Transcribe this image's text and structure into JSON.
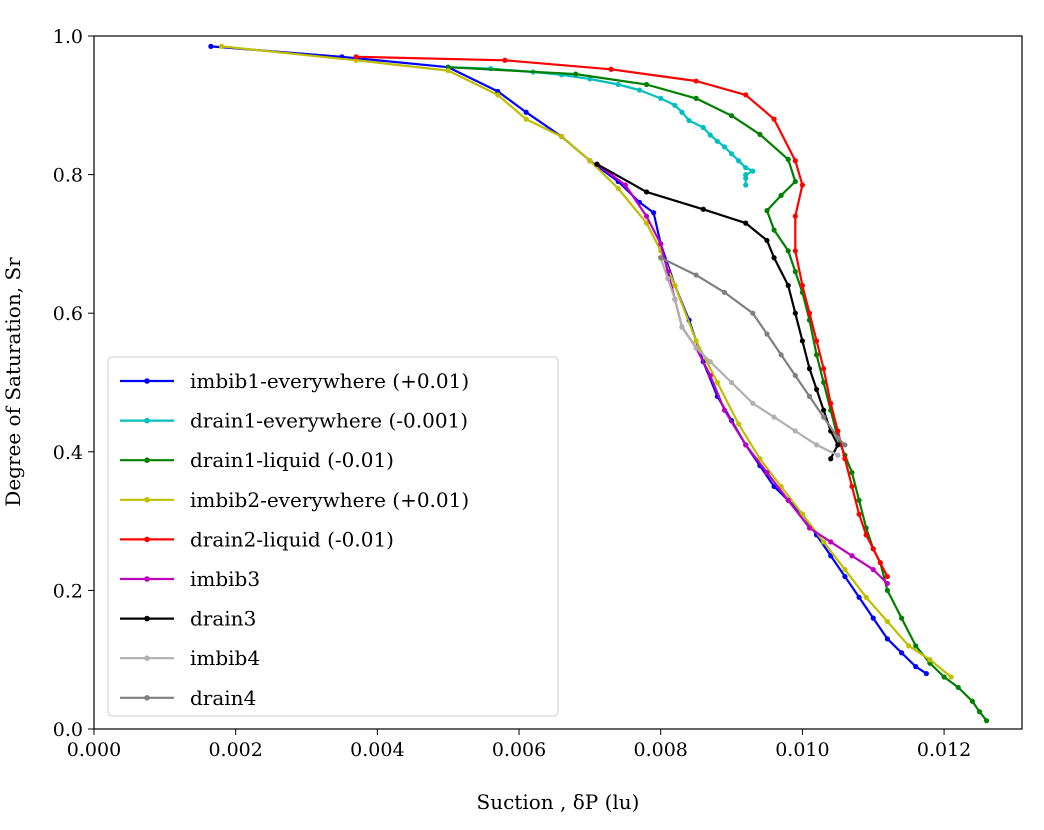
{
  "chart_data": {
    "type": "line",
    "title": "",
    "xlabel": "Suction , δP (lu)",
    "ylabel": "Degree of Saturation, Sr",
    "xlim": [
      0.0,
      0.0131
    ],
    "ylim": [
      0.0,
      1.0
    ],
    "xticks": [
      "0.000",
      "0.002",
      "0.004",
      "0.006",
      "0.008",
      "0.010",
      "0.012"
    ],
    "xtick_values": [
      0.0,
      0.002,
      0.004,
      0.006,
      0.008,
      0.01,
      0.012
    ],
    "yticks": [
      "0.0",
      "0.2",
      "0.4",
      "0.6",
      "0.8",
      "1.0"
    ],
    "ytick_values": [
      0.0,
      0.2,
      0.4,
      0.6,
      0.8,
      1.0
    ],
    "grid": false,
    "legend_position": "lower-left",
    "series": [
      {
        "name": "imbib1-everywhere (+0.01)",
        "color": "#0000ff",
        "x": [
          0.00165,
          0.0035,
          0.005,
          0.0057,
          0.0061,
          0.0066,
          0.007,
          0.0074,
          0.0077,
          0.0079,
          0.008,
          0.0082,
          0.0084,
          0.0086,
          0.0088,
          0.009,
          0.0092,
          0.0094,
          0.0096,
          0.0098,
          0.01,
          0.0102,
          0.0104,
          0.0106,
          0.0108,
          0.011,
          0.0112,
          0.0114,
          0.0116,
          0.01175
        ],
        "y": [
          0.985,
          0.97,
          0.955,
          0.92,
          0.89,
          0.855,
          0.82,
          0.79,
          0.76,
          0.745,
          0.7,
          0.64,
          0.59,
          0.53,
          0.48,
          0.445,
          0.41,
          0.38,
          0.35,
          0.33,
          0.31,
          0.28,
          0.25,
          0.22,
          0.19,
          0.16,
          0.13,
          0.11,
          0.09,
          0.08
        ]
      },
      {
        "name": "drain1-everywhere (-0.001)",
        "color": "#00bfbf",
        "x": [
          0.005,
          0.0056,
          0.0062,
          0.0066,
          0.007,
          0.0074,
          0.0077,
          0.008,
          0.0082,
          0.0083,
          0.0084,
          0.0086,
          0.0087,
          0.0088,
          0.0089,
          0.009,
          0.0091,
          0.0092,
          0.0093,
          0.0092,
          0.0092,
          0.0092
        ],
        "y": [
          0.955,
          0.953,
          0.948,
          0.944,
          0.938,
          0.93,
          0.922,
          0.91,
          0.9,
          0.89,
          0.878,
          0.868,
          0.857,
          0.848,
          0.84,
          0.83,
          0.82,
          0.81,
          0.805,
          0.8,
          0.795,
          0.785
        ]
      },
      {
        "name": "drain1-liquid (-0.01)",
        "color": "#008000",
        "x": [
          0.005,
          0.0068,
          0.0078,
          0.0085,
          0.009,
          0.0094,
          0.0098,
          0.0099,
          0.0097,
          0.0095,
          0.0096,
          0.0098,
          0.0099,
          0.01,
          0.0101,
          0.0102,
          0.0103,
          0.0104,
          0.0105,
          0.0106,
          0.0107,
          0.0108,
          0.0109,
          0.011,
          0.0111,
          0.0112,
          0.0114,
          0.0116,
          0.0118,
          0.012,
          0.0122,
          0.0124,
          0.0125,
          0.0126
        ],
        "y": [
          0.955,
          0.945,
          0.93,
          0.91,
          0.885,
          0.858,
          0.822,
          0.79,
          0.77,
          0.748,
          0.72,
          0.69,
          0.66,
          0.63,
          0.59,
          0.54,
          0.5,
          0.46,
          0.42,
          0.395,
          0.37,
          0.33,
          0.29,
          0.26,
          0.24,
          0.2,
          0.16,
          0.12,
          0.095,
          0.075,
          0.06,
          0.04,
          0.025,
          0.012
        ]
      },
      {
        "name": "imbib2-everywhere (+0.01)",
        "color": "#bfbf00",
        "x": [
          0.0018,
          0.0037,
          0.005,
          0.0057,
          0.0061,
          0.0066,
          0.007,
          0.0074,
          0.0078,
          0.008,
          0.0082,
          0.0085,
          0.0088,
          0.0091,
          0.0094,
          0.0097,
          0.01,
          0.0103,
          0.0106,
          0.0109,
          0.0112,
          0.0115,
          0.0118,
          0.0121
        ],
        "y": [
          0.985,
          0.965,
          0.95,
          0.915,
          0.88,
          0.855,
          0.82,
          0.78,
          0.73,
          0.69,
          0.64,
          0.56,
          0.5,
          0.44,
          0.39,
          0.35,
          0.31,
          0.27,
          0.23,
          0.19,
          0.155,
          0.12,
          0.1,
          0.075
        ]
      },
      {
        "name": "drain2-liquid (-0.01)",
        "color": "#ff0000",
        "x": [
          0.0037,
          0.0058,
          0.0073,
          0.0085,
          0.0092,
          0.0096,
          0.0099,
          0.01,
          0.0099,
          0.0099,
          0.01,
          0.0101,
          0.0102,
          0.0103,
          0.0104,
          0.0105,
          0.0106,
          0.0107,
          0.0108,
          0.0109,
          0.011,
          0.0111,
          0.0112
        ],
        "y": [
          0.97,
          0.965,
          0.952,
          0.935,
          0.915,
          0.88,
          0.82,
          0.785,
          0.74,
          0.69,
          0.64,
          0.6,
          0.56,
          0.52,
          0.47,
          0.43,
          0.39,
          0.35,
          0.31,
          0.28,
          0.26,
          0.24,
          0.22
        ]
      },
      {
        "name": "imbib3",
        "color": "#bf00bf",
        "x": [
          0.0071,
          0.0075,
          0.0078,
          0.008,
          0.0081,
          0.0082,
          0.0083,
          0.0085,
          0.0087,
          0.0089,
          0.0092,
          0.0095,
          0.0098,
          0.0101,
          0.0104,
          0.0107,
          0.011,
          0.0112
        ],
        "y": [
          0.815,
          0.785,
          0.74,
          0.7,
          0.66,
          0.62,
          0.58,
          0.55,
          0.51,
          0.46,
          0.41,
          0.37,
          0.33,
          0.29,
          0.27,
          0.25,
          0.23,
          0.21
        ]
      },
      {
        "name": "drain3",
        "color": "#000000",
        "x": [
          0.0071,
          0.0078,
          0.0086,
          0.0092,
          0.0095,
          0.0096,
          0.0098,
          0.0099,
          0.01,
          0.0101,
          0.0102,
          0.0103,
          0.0104,
          0.0105,
          0.0104
        ],
        "y": [
          0.815,
          0.775,
          0.75,
          0.73,
          0.705,
          0.68,
          0.64,
          0.6,
          0.56,
          0.52,
          0.49,
          0.46,
          0.43,
          0.41,
          0.39
        ]
      },
      {
        "name": "imbib4",
        "color": "#b0b0b0",
        "x": [
          0.008,
          0.0081,
          0.0082,
          0.0083,
          0.0085,
          0.0087,
          0.009,
          0.0093,
          0.0096,
          0.0099,
          0.0102,
          0.0105
        ],
        "y": [
          0.68,
          0.65,
          0.62,
          0.58,
          0.55,
          0.53,
          0.5,
          0.47,
          0.45,
          0.43,
          0.41,
          0.395
        ]
      },
      {
        "name": "drain4",
        "color": "#808080",
        "x": [
          0.008,
          0.0085,
          0.0089,
          0.0093,
          0.0095,
          0.0097,
          0.0099,
          0.0101,
          0.0103,
          0.0105,
          0.0106
        ],
        "y": [
          0.68,
          0.655,
          0.63,
          0.6,
          0.57,
          0.54,
          0.51,
          0.48,
          0.45,
          0.42,
          0.41
        ]
      }
    ]
  }
}
